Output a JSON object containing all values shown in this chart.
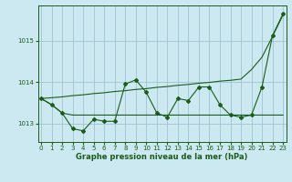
{
  "x": [
    0,
    1,
    2,
    3,
    4,
    5,
    6,
    7,
    8,
    9,
    10,
    11,
    12,
    13,
    14,
    15,
    16,
    17,
    18,
    19,
    20,
    21,
    22,
    23
  ],
  "flat_y": [
    1013.6,
    1013.45,
    1013.25,
    1013.2,
    1013.2,
    1013.2,
    1013.2,
    1013.2,
    1013.2,
    1013.2,
    1013.2,
    1013.2,
    1013.2,
    1013.2,
    1013.2,
    1013.2,
    1013.2,
    1013.2,
    1013.2,
    1013.2,
    1013.2,
    1013.2,
    1013.2,
    1013.2
  ],
  "rising_y": [
    1013.6,
    1013.62,
    1013.64,
    1013.67,
    1013.69,
    1013.72,
    1013.74,
    1013.77,
    1013.79,
    1013.82,
    1013.84,
    1013.87,
    1013.89,
    1013.92,
    1013.94,
    1013.97,
    1013.99,
    1014.02,
    1014.04,
    1014.07,
    1014.3,
    1014.6,
    1015.1,
    1015.62
  ],
  "zigzag_y": [
    1013.6,
    1013.45,
    1013.25,
    1012.87,
    1012.82,
    1013.1,
    1013.05,
    1013.05,
    1013.95,
    1014.05,
    1013.75,
    1013.25,
    1013.15,
    1013.6,
    1013.55,
    1013.88,
    1013.88,
    1013.45,
    1013.2,
    1013.15,
    1013.2,
    1013.88,
    1015.12,
    1015.65
  ],
  "bg_color": "#cce8f0",
  "line_color": "#1a5c1a",
  "grid_color": "#99bbcc",
  "xlabel": "Graphe pression niveau de la mer (hPa)",
  "yticks": [
    1013,
    1014,
    1015
  ],
  "ylim": [
    1012.55,
    1015.85
  ],
  "xlim": [
    -0.3,
    23.3
  ],
  "figsize": [
    3.2,
    2.0
  ],
  "dpi": 100
}
